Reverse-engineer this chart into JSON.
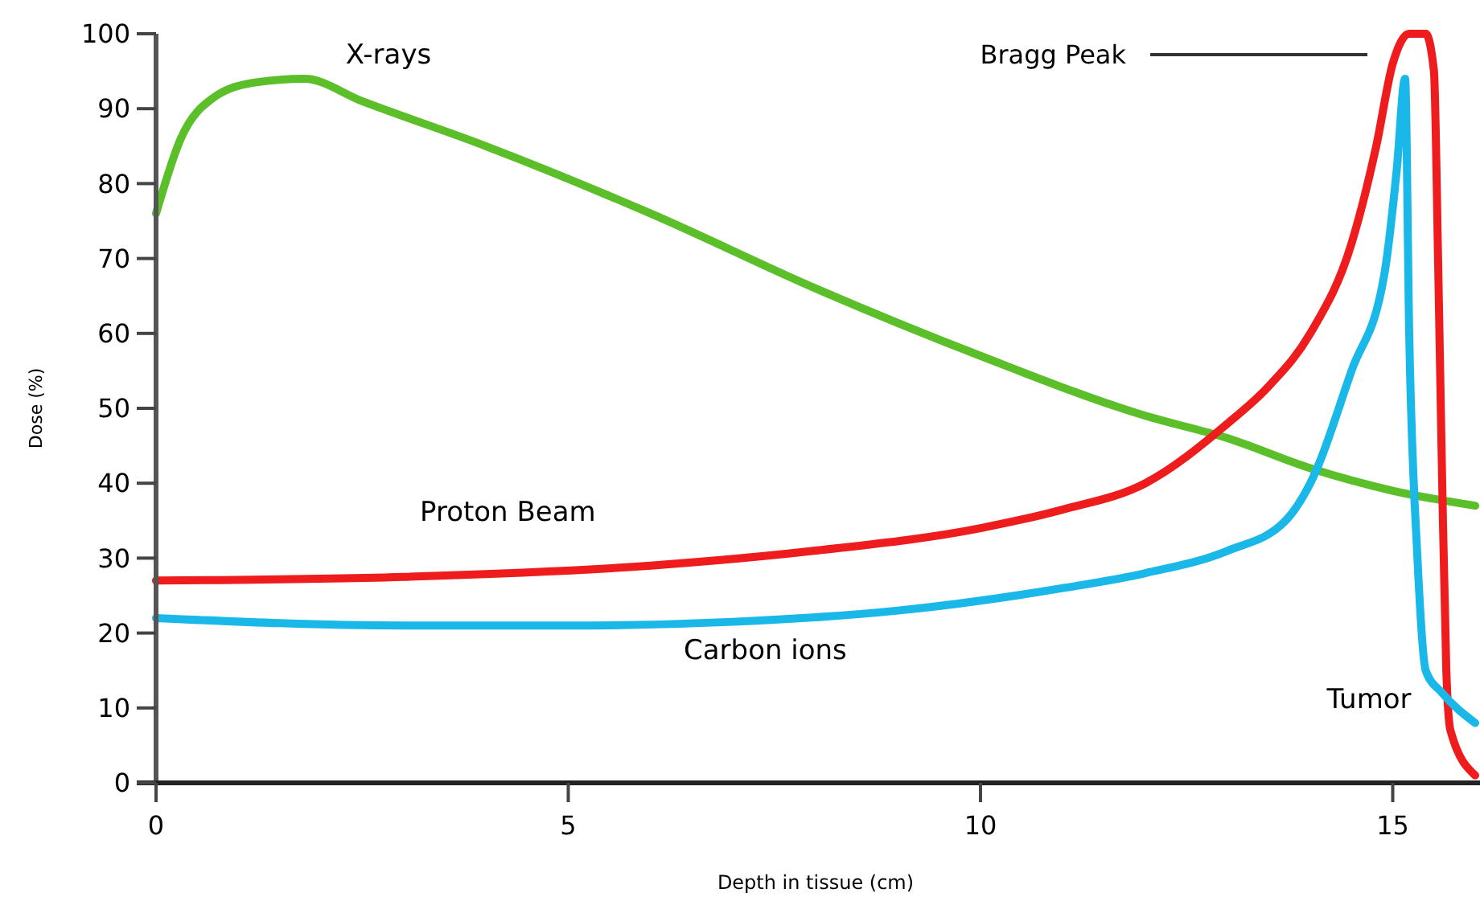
{
  "chart_data": {
    "type": "line",
    "xlabel": "Depth in tissue (cm)",
    "ylabel": "Dose (%)",
    "xlim": [
      0,
      16
    ],
    "xticks": [
      0,
      5,
      10,
      15
    ],
    "ylim": [
      0,
      100
    ],
    "yticks": [
      0,
      10,
      20,
      30,
      40,
      50,
      60,
      70,
      80,
      90,
      100
    ],
    "grid": false,
    "marker": "none",
    "line_style": "solid",
    "series": [
      {
        "name": "X-rays",
        "color": "#5bbf2a",
        "x": [
          0,
          0.3,
          0.7,
          1.2,
          1.8,
          2.5,
          4,
          6,
          8,
          10,
          12,
          13,
          14,
          15,
          16
        ],
        "values": [
          76,
          86,
          91.5,
          93.5,
          94,
          91,
          85,
          76,
          66,
          57,
          49,
          46,
          42,
          39,
          37
        ]
      },
      {
        "name": "Proton Beam",
        "color": "#ee1c1c",
        "x": [
          0,
          3,
          6,
          8,
          10,
          11,
          12,
          13,
          13.5,
          14,
          14.5,
          14.8,
          15,
          15.2,
          15.4,
          15.5,
          15.55,
          15.6,
          15.65,
          15.7,
          16
        ],
        "values": [
          27,
          27.5,
          29,
          31,
          34,
          36.5,
          40,
          48,
          53,
          60,
          72,
          85,
          96,
          100,
          100,
          95,
          70,
          40,
          15,
          7,
          1
        ]
      },
      {
        "name": "Carbon ions",
        "color": "#1ab8e8",
        "x": [
          0,
          3,
          5,
          7,
          9,
          11,
          12,
          13,
          13.7,
          14,
          14.5,
          14.9,
          15.05,
          15.15,
          15.2,
          15.3,
          15.4,
          15.6,
          16
        ],
        "values": [
          22,
          21,
          21,
          21.5,
          23,
          26,
          28,
          31,
          35,
          40,
          55,
          68,
          82,
          94,
          60,
          30,
          15,
          12,
          8
        ]
      }
    ],
    "annotations": [
      "Bragg Peak",
      "Tumor"
    ]
  }
}
